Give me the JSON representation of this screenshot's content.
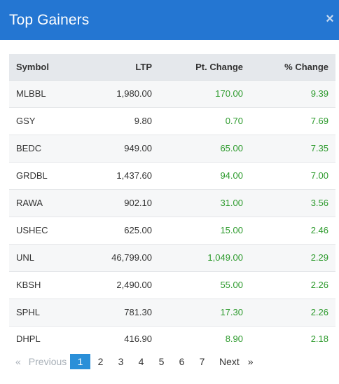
{
  "header": {
    "title": "Top Gainers",
    "close_glyph": "×",
    "close_icon": "close-icon"
  },
  "table": {
    "columns": [
      "Symbol",
      "LTP",
      "Pt. Change",
      "% Change"
    ],
    "rows": [
      {
        "symbol": "MLBBL",
        "ltp": "1,980.00",
        "pt_change": "170.00",
        "pct_change": "9.39"
      },
      {
        "symbol": "GSY",
        "ltp": "9.80",
        "pt_change": "0.70",
        "pct_change": "7.69"
      },
      {
        "symbol": "BEDC",
        "ltp": "949.00",
        "pt_change": "65.00",
        "pct_change": "7.35"
      },
      {
        "symbol": "GRDBL",
        "ltp": "1,437.60",
        "pt_change": "94.00",
        "pct_change": "7.00"
      },
      {
        "symbol": "RAWA",
        "ltp": "902.10",
        "pt_change": "31.00",
        "pct_change": "3.56"
      },
      {
        "symbol": "USHEC",
        "ltp": "625.00",
        "pt_change": "15.00",
        "pct_change": "2.46"
      },
      {
        "symbol": "UNL",
        "ltp": "46,799.00",
        "pt_change": "1,049.00",
        "pct_change": "2.29"
      },
      {
        "symbol": "KBSH",
        "ltp": "2,490.00",
        "pt_change": "55.00",
        "pct_change": "2.26"
      },
      {
        "symbol": "SPHL",
        "ltp": "781.30",
        "pt_change": "17.30",
        "pct_change": "2.26"
      },
      {
        "symbol": "DHPL",
        "ltp": "416.90",
        "pt_change": "8.90",
        "pct_change": "2.18"
      }
    ]
  },
  "pagination": {
    "prev_arrow": "«",
    "prev_label": "Previous",
    "pages": [
      "1",
      "2",
      "3",
      "4",
      "5",
      "6",
      "7"
    ],
    "current": "1",
    "next_label": "Next",
    "next_arrow": "»"
  },
  "colors": {
    "header_bg": "#2476d2",
    "positive": "#2c9a2c",
    "active_page": "#2a8fd8"
  }
}
